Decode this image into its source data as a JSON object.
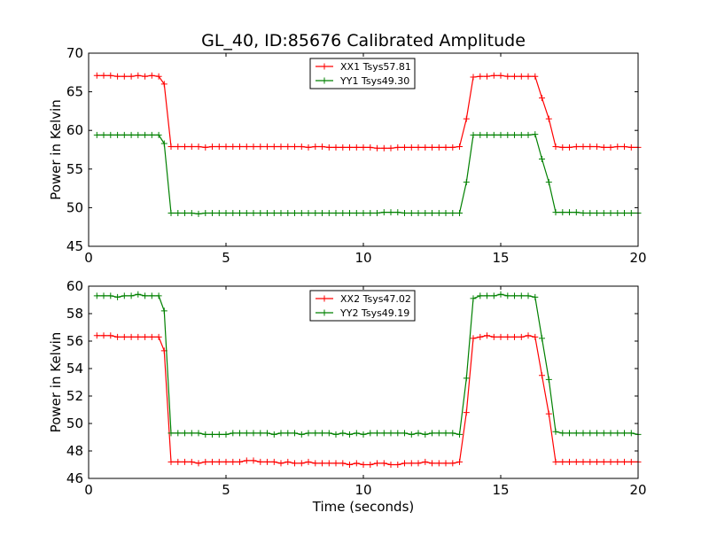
{
  "figure": {
    "title": "GL_40, ID:85676 Calibrated Amplitude"
  },
  "colors": {
    "xx": "#ff0000",
    "yy": "#008000"
  },
  "chart_data": [
    {
      "type": "line",
      "title": "GL_40, ID:85676 Calibrated Amplitude",
      "xlabel": "",
      "ylabel": "Power in Kelvin",
      "xlim": [
        0,
        20
      ],
      "ylim": [
        45,
        70
      ],
      "xticks": [
        "0",
        "5",
        "10",
        "15",
        "20"
      ],
      "yticks": [
        "45",
        "50",
        "55",
        "60",
        "65",
        "70"
      ],
      "grid": false,
      "legend": "top-center",
      "x": [
        0.3,
        0.55,
        0.8,
        1.05,
        1.3,
        1.55,
        1.8,
        2.05,
        2.3,
        2.55,
        2.75,
        3.0,
        3.25,
        3.5,
        3.75,
        4.0,
        4.25,
        4.5,
        4.75,
        5.0,
        5.25,
        5.5,
        5.75,
        6.0,
        6.25,
        6.5,
        6.75,
        7.0,
        7.25,
        7.5,
        7.75,
        8.0,
        8.25,
        8.5,
        8.75,
        9.0,
        9.25,
        9.5,
        9.75,
        10.0,
        10.25,
        10.5,
        10.75,
        11.0,
        11.25,
        11.5,
        11.75,
        12.0,
        12.25,
        12.5,
        12.75,
        13.0,
        13.25,
        13.5,
        13.75,
        14.0,
        14.25,
        14.5,
        14.75,
        15.0,
        15.25,
        15.5,
        15.75,
        16.0,
        16.25,
        16.5,
        16.75,
        17.0,
        17.25,
        17.5,
        17.75,
        18.0,
        18.25,
        18.5,
        18.75,
        19.0,
        19.25,
        19.5,
        19.75,
        20.0
      ],
      "series": [
        {
          "name": "XX1 Tsys57.81",
          "color": "#ff0000",
          "values": [
            67.1,
            67.1,
            67.1,
            67.0,
            67.0,
            67.0,
            67.1,
            67.0,
            67.1,
            67.0,
            66.0,
            57.9,
            57.9,
            57.9,
            57.9,
            57.9,
            57.8,
            57.9,
            57.9,
            57.9,
            57.9,
            57.9,
            57.9,
            57.9,
            57.9,
            57.9,
            57.9,
            57.9,
            57.9,
            57.9,
            57.9,
            57.8,
            57.9,
            57.9,
            57.8,
            57.8,
            57.8,
            57.8,
            57.8,
            57.8,
            57.8,
            57.7,
            57.7,
            57.7,
            57.8,
            57.8,
            57.8,
            57.8,
            57.8,
            57.8,
            57.8,
            57.8,
            57.8,
            57.9,
            61.5,
            66.9,
            67.0,
            67.0,
            67.1,
            67.1,
            67.0,
            67.0,
            67.0,
            67.0,
            67.0,
            64.2,
            61.5,
            57.9,
            57.8,
            57.8,
            57.9,
            57.9,
            57.9,
            57.9,
            57.8,
            57.8,
            57.9,
            57.9,
            57.8,
            57.8
          ]
        },
        {
          "name": "YY1 Tsys49.30",
          "color": "#008000",
          "values": [
            59.4,
            59.4,
            59.4,
            59.4,
            59.4,
            59.4,
            59.4,
            59.4,
            59.4,
            59.4,
            58.3,
            49.3,
            49.3,
            49.3,
            49.3,
            49.2,
            49.3,
            49.3,
            49.3,
            49.3,
            49.3,
            49.3,
            49.3,
            49.3,
            49.3,
            49.3,
            49.3,
            49.3,
            49.3,
            49.3,
            49.3,
            49.3,
            49.3,
            49.3,
            49.3,
            49.3,
            49.3,
            49.3,
            49.3,
            49.3,
            49.3,
            49.3,
            49.4,
            49.4,
            49.4,
            49.3,
            49.3,
            49.3,
            49.3,
            49.3,
            49.3,
            49.3,
            49.3,
            49.3,
            53.3,
            59.4,
            59.4,
            59.4,
            59.4,
            59.4,
            59.4,
            59.4,
            59.4,
            59.4,
            59.5,
            56.3,
            53.3,
            49.4,
            49.4,
            49.4,
            49.4,
            49.3,
            49.3,
            49.3,
            49.3,
            49.3,
            49.3,
            49.3,
            49.3,
            49.3
          ]
        }
      ]
    },
    {
      "type": "line",
      "title": "",
      "xlabel": "Time (seconds)",
      "ylabel": "Power in Kelvin",
      "xlim": [
        0,
        20
      ],
      "ylim": [
        46,
        60
      ],
      "xticks": [
        "0",
        "5",
        "10",
        "15",
        "20"
      ],
      "yticks": [
        "46",
        "48",
        "50",
        "52",
        "54",
        "56",
        "58",
        "60"
      ],
      "grid": false,
      "legend": "top-center",
      "x": [
        0.3,
        0.55,
        0.8,
        1.05,
        1.3,
        1.55,
        1.8,
        2.05,
        2.3,
        2.55,
        2.75,
        3.0,
        3.25,
        3.5,
        3.75,
        4.0,
        4.25,
        4.5,
        4.75,
        5.0,
        5.25,
        5.5,
        5.75,
        6.0,
        6.25,
        6.5,
        6.75,
        7.0,
        7.25,
        7.5,
        7.75,
        8.0,
        8.25,
        8.5,
        8.75,
        9.0,
        9.25,
        9.5,
        9.75,
        10.0,
        10.25,
        10.5,
        10.75,
        11.0,
        11.25,
        11.5,
        11.75,
        12.0,
        12.25,
        12.5,
        12.75,
        13.0,
        13.25,
        13.5,
        13.75,
        14.0,
        14.25,
        14.5,
        14.75,
        15.0,
        15.25,
        15.5,
        15.75,
        16.0,
        16.25,
        16.5,
        16.75,
        17.0,
        17.25,
        17.5,
        17.75,
        18.0,
        18.25,
        18.5,
        18.75,
        19.0,
        19.25,
        19.5,
        19.75,
        20.0
      ],
      "series": [
        {
          "name": "XX2 Tsys47.02",
          "color": "#ff0000",
          "values": [
            56.4,
            56.4,
            56.4,
            56.3,
            56.3,
            56.3,
            56.3,
            56.3,
            56.3,
            56.3,
            55.3,
            47.2,
            47.2,
            47.2,
            47.2,
            47.1,
            47.2,
            47.2,
            47.2,
            47.2,
            47.2,
            47.2,
            47.3,
            47.3,
            47.2,
            47.2,
            47.2,
            47.1,
            47.2,
            47.1,
            47.1,
            47.2,
            47.1,
            47.1,
            47.1,
            47.1,
            47.1,
            47.0,
            47.1,
            47.0,
            47.0,
            47.1,
            47.1,
            47.0,
            47.0,
            47.1,
            47.1,
            47.1,
            47.2,
            47.1,
            47.1,
            47.1,
            47.1,
            47.2,
            50.8,
            56.2,
            56.3,
            56.4,
            56.3,
            56.3,
            56.3,
            56.3,
            56.3,
            56.4,
            56.3,
            53.5,
            50.7,
            47.2,
            47.2,
            47.2,
            47.2,
            47.2,
            47.2,
            47.2,
            47.2,
            47.2,
            47.2,
            47.2,
            47.2,
            47.2
          ]
        },
        {
          "name": "YY2 Tsys49.19",
          "color": "#008000",
          "values": [
            59.3,
            59.3,
            59.3,
            59.2,
            59.3,
            59.3,
            59.4,
            59.3,
            59.3,
            59.3,
            58.2,
            49.3,
            49.3,
            49.3,
            49.3,
            49.3,
            49.2,
            49.2,
            49.2,
            49.2,
            49.3,
            49.3,
            49.3,
            49.3,
            49.3,
            49.3,
            49.2,
            49.3,
            49.3,
            49.3,
            49.2,
            49.3,
            49.3,
            49.3,
            49.3,
            49.2,
            49.3,
            49.2,
            49.3,
            49.2,
            49.3,
            49.3,
            49.3,
            49.3,
            49.3,
            49.3,
            49.2,
            49.3,
            49.2,
            49.3,
            49.3,
            49.3,
            49.3,
            49.2,
            53.3,
            59.1,
            59.3,
            59.3,
            59.3,
            59.4,
            59.3,
            59.3,
            59.3,
            59.3,
            59.2,
            56.2,
            53.2,
            49.4,
            49.3,
            49.3,
            49.3,
            49.3,
            49.3,
            49.3,
            49.3,
            49.3,
            49.3,
            49.3,
            49.3,
            49.2
          ]
        }
      ]
    }
  ]
}
